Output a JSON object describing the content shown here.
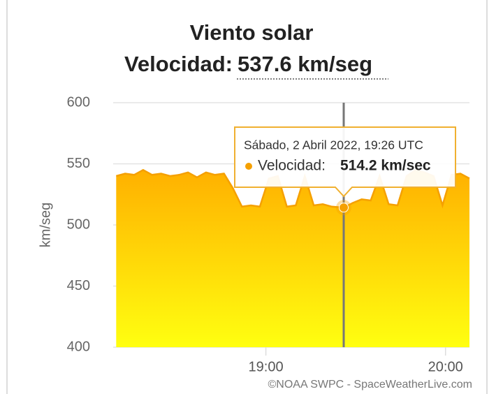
{
  "chart_data": {
    "type": "area",
    "title": "Viento solar",
    "subtitle_label": "Velocidad:",
    "subtitle_value": "537.6 km/seg",
    "y_label": "km/seg",
    "x": [
      "18:10",
      "18:13",
      "18:16",
      "18:19",
      "18:22",
      "18:25",
      "18:28",
      "18:31",
      "18:34",
      "18:37",
      "18:40",
      "18:43",
      "18:46",
      "18:49",
      "18:52",
      "18:55",
      "18:58",
      "19:01",
      "19:04",
      "19:07",
      "19:10",
      "19:13",
      "19:16",
      "19:19",
      "19:22",
      "19:26",
      "19:29",
      "19:32",
      "19:35",
      "19:38",
      "19:41",
      "19:44",
      "19:47",
      "19:50",
      "19:53",
      "19:56",
      "19:59",
      "20:02",
      "20:05",
      "20:08"
    ],
    "values": [
      540,
      542,
      541,
      545,
      541,
      542,
      540,
      541,
      543,
      539,
      543,
      541,
      542,
      530,
      515,
      516,
      515,
      538,
      540,
      515,
      516,
      540,
      516,
      517,
      515,
      514.2,
      518,
      521,
      520,
      540,
      517,
      516,
      540,
      545,
      543,
      540,
      516,
      541,
      542,
      538
    ],
    "color": "#f5a000",
    "xlim": [
      "18:09",
      "20:08"
    ],
    "xticks": [
      "19:00",
      "20:00"
    ],
    "ylim": [
      400,
      600
    ],
    "yticks": [
      400,
      450,
      500,
      550,
      600
    ],
    "grid": true,
    "crosshair": "19:26",
    "tooltip": {
      "date": "Sábado, 2 Abril 2022, 19:26 UTC",
      "label": "Velocidad:",
      "value": "514.2 km/sec"
    },
    "credit": "©NOAA SWPC - SpaceWeatherLive.com"
  }
}
